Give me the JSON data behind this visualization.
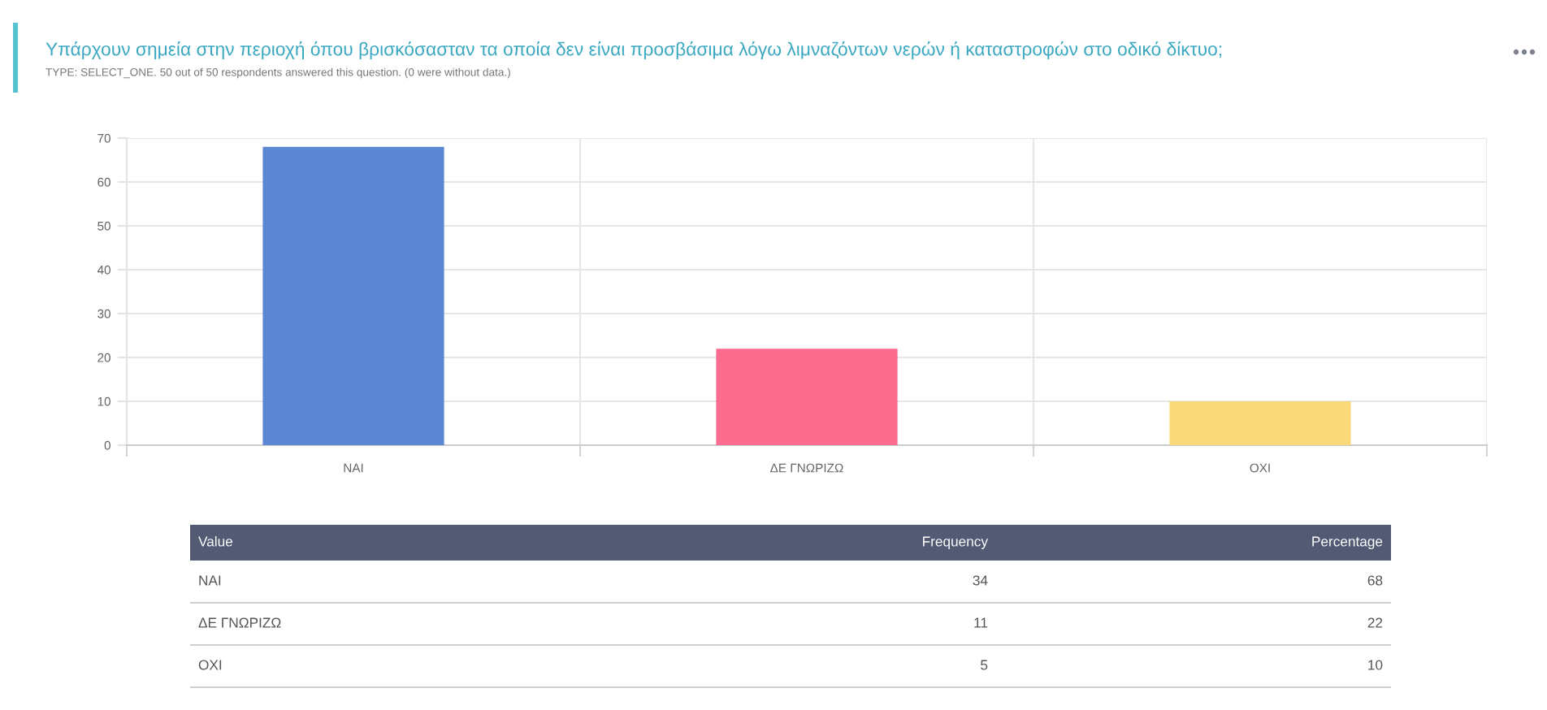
{
  "chart_data": [
    {
      "type": "bar",
      "title": "Υπάρχουν σημεία στην περιοχή όπου βρισκόσασταν τα οποία δεν είναι προσβάσιμα λόγω λιμναζόντων νερών ή καταστροφών στο οδικό δίκτυο;",
      "subtitle": "TYPE: SELECT_ONE. 50 out of 50 respondents answered this question. (0 were without data.)",
      "categories": [
        "ΝΑΙ",
        "ΔΕ ΓΝΩΡΙΖΩ",
        "ΟΧΙ"
      ],
      "values": [
        68,
        22,
        10
      ],
      "colors": [
        "#5b87d2",
        "#fb6c8f",
        "#f9da7b"
      ],
      "ylim": [
        0,
        70
      ],
      "yticks": [
        0,
        10,
        20,
        30,
        40,
        50,
        60,
        70
      ],
      "grid": true
    },
    {
      "type": "other",
      "xlabel": "Value",
      "categories": [
        "ΝΑΙ",
        "ΔΕ ΓΝΩΡΙΖΩ",
        "ΟΧΙ"
      ],
      "series": [
        {
          "name": "Frequency",
          "values": [
            34,
            11,
            5
          ]
        },
        {
          "name": "Percentage",
          "values": [
            68,
            22,
            10
          ]
        }
      ],
      "data_labels": true
    }
  ]
}
